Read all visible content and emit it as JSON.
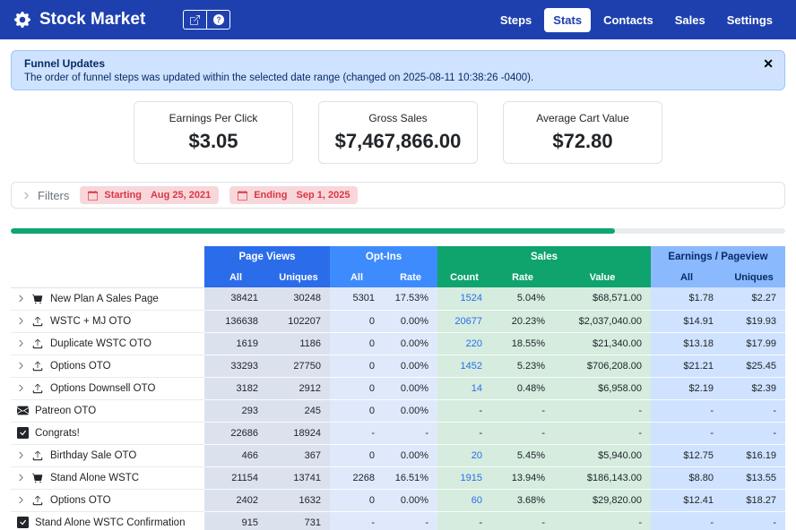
{
  "navbar": {
    "title": "Stock Market",
    "nav_items": [
      {
        "label": "Steps",
        "active": false
      },
      {
        "label": "Stats",
        "active": true
      },
      {
        "label": "Contacts",
        "active": false
      },
      {
        "label": "Sales",
        "active": false
      },
      {
        "label": "Settings",
        "active": false
      }
    ]
  },
  "alert": {
    "title": "Funnel Updates",
    "message": "The order of funnel steps was updated within the selected date range (changed on 2025-08-11 10:38:26 -0400).",
    "close_label": "✕"
  },
  "stat_cards": [
    {
      "label": "Earnings Per Click",
      "value": "$3.05"
    },
    {
      "label": "Gross Sales",
      "value": "$7,467,866.00"
    },
    {
      "label": "Average Cart Value",
      "value": "$72.80"
    }
  ],
  "filters": {
    "label": "Filters",
    "starting_label": "Starting",
    "starting_value": "Aug 25, 2021",
    "ending_label": "Ending",
    "ending_value": "Sep 1, 2025"
  },
  "progress": {
    "percent": 78
  },
  "colors": {
    "navbar_blue": "#1e40af",
    "pageviews_header": "#2b6cea",
    "optins_header": "#3d8bfd",
    "sales_header": "#0fa36e",
    "earnings_header": "#8bb9fe",
    "progress_green": "#0ea672",
    "badge_red": "#dc3545"
  },
  "table": {
    "groups": [
      {
        "label": "Page Views",
        "cols": [
          "All",
          "Uniques"
        ]
      },
      {
        "label": "Opt-Ins",
        "cols": [
          "All",
          "Rate"
        ]
      },
      {
        "label": "Sales",
        "cols": [
          "Count",
          "Rate",
          "Value"
        ]
      },
      {
        "label": "Earnings / Pageview",
        "cols": [
          "All",
          "Uniques"
        ]
      }
    ],
    "rows": [
      {
        "name": "New Plan A Sales Page",
        "icon": "cart",
        "expandable": true,
        "cells": [
          "38421",
          "30248",
          "5301",
          "17.53%",
          "1524",
          "5.04%",
          "$68,571.00",
          "$1.78",
          "$2.27"
        ]
      },
      {
        "name": "WSTC + MJ OTO",
        "icon": "arrow-up",
        "expandable": true,
        "cells": [
          "136638",
          "102207",
          "0",
          "0.00%",
          "20677",
          "20.23%",
          "$2,037,040.00",
          "$14.91",
          "$19.93"
        ]
      },
      {
        "name": "Duplicate WSTC OTO",
        "icon": "arrow-up",
        "expandable": true,
        "cells": [
          "1619",
          "1186",
          "0",
          "0.00%",
          "220",
          "18.55%",
          "$21,340.00",
          "$13.18",
          "$17.99"
        ]
      },
      {
        "name": "Options OTO",
        "icon": "arrow-up",
        "expandable": true,
        "cells": [
          "33293",
          "27750",
          "0",
          "0.00%",
          "1452",
          "5.23%",
          "$706,208.00",
          "$21.21",
          "$25.45"
        ]
      },
      {
        "name": "Options Downsell OTO",
        "icon": "arrow-up",
        "expandable": true,
        "cells": [
          "3182",
          "2912",
          "0",
          "0.00%",
          "14",
          "0.48%",
          "$6,958.00",
          "$2.19",
          "$2.39"
        ]
      },
      {
        "name": "Patreon OTO",
        "icon": "envelope",
        "expandable": false,
        "cells": [
          "293",
          "245",
          "0",
          "0.00%",
          "-",
          "-",
          "-",
          "-",
          "-"
        ]
      },
      {
        "name": "Congrats!",
        "icon": "check-square",
        "expandable": false,
        "cells": [
          "22686",
          "18924",
          "-",
          "-",
          "-",
          "-",
          "-",
          "-",
          "-"
        ]
      },
      {
        "name": "Birthday Sale OTO",
        "icon": "arrow-up",
        "expandable": true,
        "cells": [
          "466",
          "367",
          "0",
          "0.00%",
          "20",
          "5.45%",
          "$5,940.00",
          "$12.75",
          "$16.19"
        ]
      },
      {
        "name": "Stand Alone WSTC",
        "icon": "cart",
        "expandable": true,
        "cells": [
          "21154",
          "13741",
          "2268",
          "16.51%",
          "1915",
          "13.94%",
          "$186,143.00",
          "$8.80",
          "$13.55"
        ]
      },
      {
        "name": "Options OTO",
        "icon": "arrow-up",
        "expandable": true,
        "cells": [
          "2402",
          "1632",
          "0",
          "0.00%",
          "60",
          "3.68%",
          "$29,820.00",
          "$12.41",
          "$18.27"
        ]
      },
      {
        "name": "Stand Alone WSTC Confirmation",
        "icon": "check-square",
        "expandable": false,
        "cells": [
          "915",
          "731",
          "-",
          "-",
          "-",
          "-",
          "-",
          "-",
          "-"
        ]
      }
    ]
  }
}
